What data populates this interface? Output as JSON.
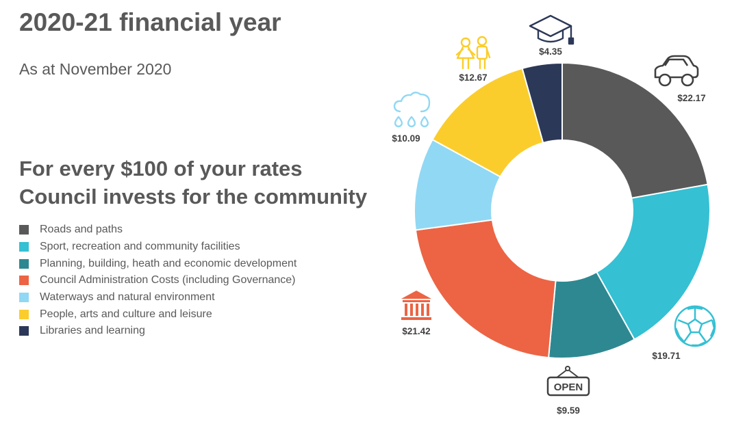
{
  "title": "2020-21 financial year",
  "subtitle": "As at November 2020",
  "headline": [
    "For every $100 of your rates",
    "Council invests for the community"
  ],
  "chart_data": {
    "type": "pie",
    "donut": true,
    "categories": [
      "Roads and paths",
      "Sport, recreation and community facilities",
      "Planning, building, heath and economic development",
      "Council Administration Costs (including Governance)",
      "Waterways and natural environment",
      "People, arts and culture and leisure",
      "Libraries and learning"
    ],
    "values": [
      22.17,
      19.71,
      9.59,
      21.42,
      10.09,
      12.67,
      4.35
    ],
    "value_labels": [
      "$22.17",
      "$19.71",
      "$9.59",
      "$21.42",
      "$10.09",
      "$12.67",
      "$4.35"
    ],
    "colors": [
      "#595959",
      "#35C0D3",
      "#2E8891",
      "#EC6444",
      "#91D8F4",
      "#FBCD2C",
      "#2C3857"
    ],
    "icons": [
      "car-icon",
      "soccer-ball-icon",
      "open-sign-icon",
      "building-columns-icon",
      "rain-cloud-icon",
      "children-icon",
      "graduation-cap-icon"
    ],
    "legend_position": "left"
  }
}
